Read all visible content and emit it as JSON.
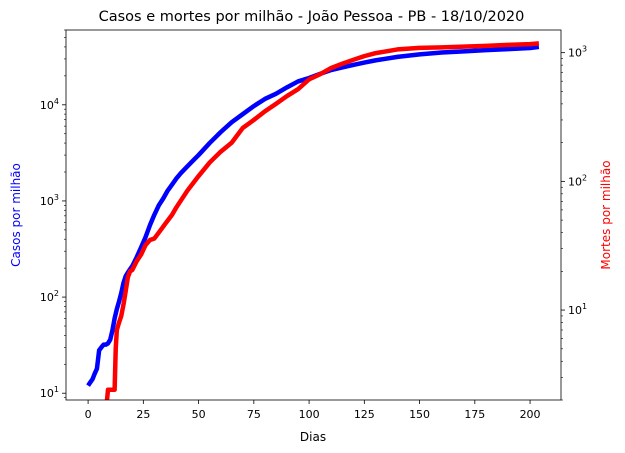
{
  "chart_data": {
    "type": "line",
    "title": "Casos e mortes por milhão - João Pessoa - PB - 18/10/2020",
    "xlabel": "Dias",
    "ylabel_left": "Casos por milhão",
    "ylabel_right": "Mortes por milhão",
    "xlim": [
      -10,
      214
    ],
    "ylim_left": [
      8.5,
      60000
    ],
    "ylim_right": [
      2.0,
      1500
    ],
    "yscale_left": "log",
    "yscale_right": "log",
    "grid": false,
    "x_ticks": [
      "0",
      "25",
      "50",
      "75",
      "100",
      "125",
      "150",
      "175",
      "200"
    ],
    "left_tick_labels": [
      {
        "exp": "1",
        "sup": "1"
      },
      {
        "exp": "2",
        "sup": "2"
      },
      {
        "exp": "3",
        "sup": "3"
      },
      {
        "exp": "4",
        "sup": "4"
      }
    ],
    "right_tick_labels": [
      {
        "exp": "1",
        "sup": "1"
      },
      {
        "exp": "2",
        "sup": "2"
      },
      {
        "exp": "3",
        "sup": "3"
      }
    ],
    "series": [
      {
        "axis": "left",
        "color": "#0000ff",
        "x": [
          0,
          1,
          2,
          3,
          4,
          5,
          6,
          7,
          8,
          9,
          10,
          11,
          12,
          13,
          14,
          15,
          16,
          17,
          18,
          19,
          20,
          22,
          24,
          26,
          28,
          30,
          32,
          34,
          36,
          38,
          40,
          42,
          45,
          48,
          50,
          55,
          60,
          65,
          70,
          75,
          80,
          85,
          90,
          95,
          100,
          105,
          110,
          115,
          120,
          125,
          130,
          140,
          150,
          160,
          170,
          180,
          190,
          200,
          204
        ],
        "values": [
          12,
          13,
          14,
          16,
          18,
          28,
          30,
          32,
          32,
          33,
          36,
          45,
          60,
          75,
          90,
          110,
          140,
          165,
          180,
          195,
          210,
          260,
          330,
          420,
          560,
          720,
          900,
          1060,
          1280,
          1480,
          1720,
          1950,
          2300,
          2700,
          3000,
          4000,
          5200,
          6600,
          8000,
          9700,
          11500,
          13000,
          15200,
          17500,
          19000,
          21000,
          23000,
          24500,
          26000,
          27500,
          29000,
          31500,
          33500,
          35000,
          36000,
          37000,
          38000,
          39000,
          40000
        ]
      },
      {
        "axis": "right",
        "color": "#ff0000",
        "x": [
          8,
          8.8,
          9,
          10,
          11,
          12,
          12.5,
          13,
          14,
          15,
          16,
          17,
          18,
          19,
          20,
          22,
          24,
          26,
          28,
          30,
          32,
          35,
          38,
          40,
          45,
          50,
          55,
          60,
          65,
          70,
          75,
          80,
          85,
          90,
          95,
          100,
          105,
          110,
          115,
          120,
          125,
          130,
          140,
          150,
          160,
          170,
          180,
          190,
          200,
          204
        ],
        "values": [
          1.6,
          2.2,
          2.4,
          2.4,
          2.4,
          2.4,
          5.0,
          7.0,
          8.0,
          9.0,
          11.0,
          14.0,
          18.0,
          20.0,
          20.5,
          24.0,
          27.0,
          32.0,
          35.0,
          36.0,
          40.0,
          47.0,
          55.0,
          63.0,
          85.0,
          110.0,
          140.0,
          170.0,
          200.0,
          260.0,
          300.0,
          350.0,
          400.0,
          460.0,
          520.0,
          620.0,
          680.0,
          760.0,
          820.0,
          880.0,
          940.0,
          990.0,
          1060.0,
          1090.0,
          1100.0,
          1115.0,
          1130.0,
          1150.0,
          1165.0,
          1180.0
        ]
      }
    ]
  }
}
